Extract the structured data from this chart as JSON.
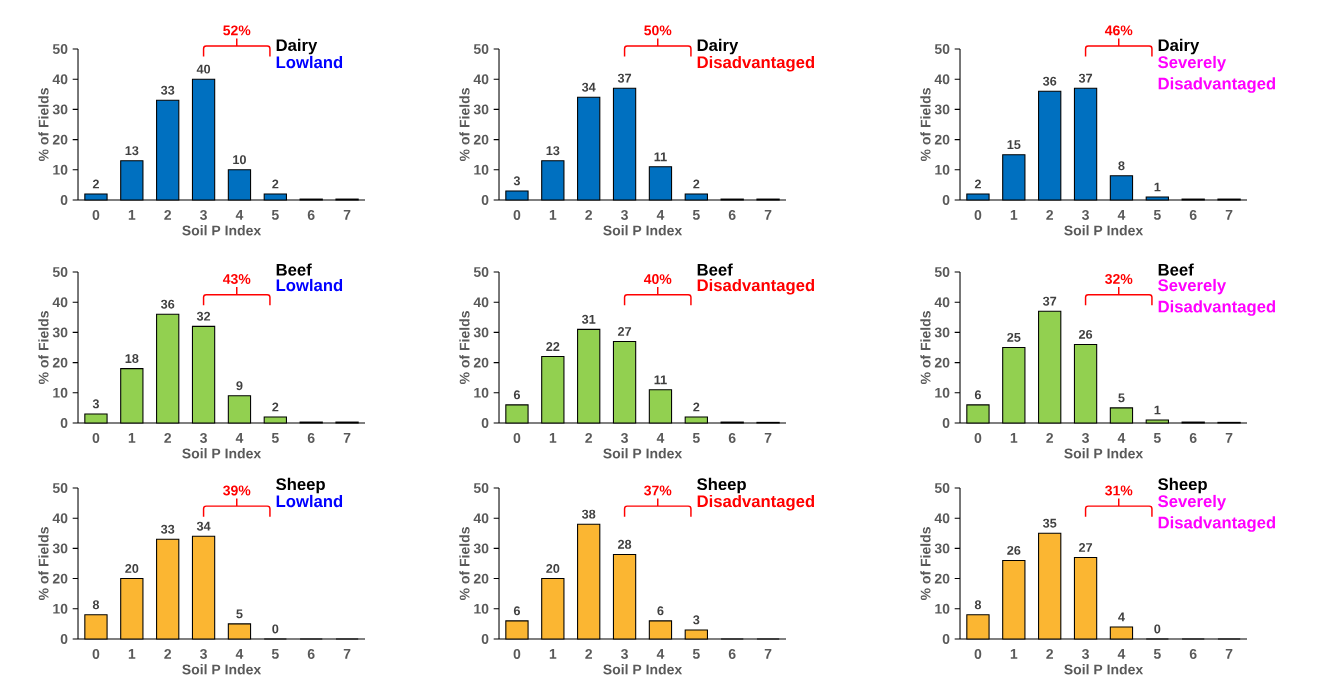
{
  "chart_data": [
    {
      "type": "bar",
      "title": "Dairy",
      "subtitle": "Lowland",
      "xlabel": "Soil P Index",
      "ylabel": "% of Fields",
      "categories": [
        "0",
        "1",
        "2",
        "3",
        "4",
        "5",
        "6",
        "7"
      ],
      "values": [
        2,
        13,
        33,
        40,
        10,
        2,
        0.3,
        0.3
      ],
      "value_labels": [
        "2",
        "13",
        "33",
        "40",
        "10",
        "2",
        null,
        null
      ],
      "color": "#0070c0",
      "ylim": [
        0,
        50
      ],
      "yticks": [
        0,
        10,
        20,
        30,
        40,
        50
      ],
      "annotations": [
        "52%"
      ]
    },
    {
      "type": "bar",
      "title": "Dairy",
      "subtitle": "Disadvantaged",
      "xlabel": "Soil P Index",
      "ylabel": "% of Fields",
      "categories": [
        "0",
        "1",
        "2",
        "3",
        "4",
        "5",
        "6",
        "7"
      ],
      "values": [
        3,
        13,
        34,
        37,
        11,
        2,
        0.3,
        0.3
      ],
      "value_labels": [
        "3",
        "13",
        "34",
        "37",
        "11",
        "2",
        null,
        null
      ],
      "color": "#0070c0",
      "ylim": [
        0,
        50
      ],
      "yticks": [
        0,
        10,
        20,
        30,
        40,
        50
      ],
      "annotations": [
        "50%"
      ]
    },
    {
      "type": "bar",
      "title": "Dairy",
      "subtitle": "Severely Disadvantaged",
      "xlabel": "Soil P Index",
      "ylabel": "% of Fields",
      "categories": [
        "0",
        "1",
        "2",
        "3",
        "4",
        "5",
        "6",
        "7"
      ],
      "values": [
        2,
        15,
        36,
        37,
        8,
        1,
        0.3,
        0.3
      ],
      "value_labels": [
        "2",
        "15",
        "36",
        "37",
        "8",
        "1",
        null,
        null
      ],
      "color": "#0070c0",
      "ylim": [
        0,
        50
      ],
      "yticks": [
        0,
        10,
        20,
        30,
        40,
        50
      ],
      "annotations": [
        "46%"
      ]
    },
    {
      "type": "bar",
      "title": "Beef",
      "subtitle": "Lowland",
      "xlabel": "Soil P Index",
      "ylabel": "% of Fields",
      "categories": [
        "0",
        "1",
        "2",
        "3",
        "4",
        "5",
        "6",
        "7"
      ],
      "values": [
        3,
        18,
        36,
        32,
        9,
        2,
        0.3,
        0.3
      ],
      "value_labels": [
        "3",
        "18",
        "36",
        "32",
        "9",
        "2",
        null,
        null
      ],
      "color": "#92d050",
      "ylim": [
        0,
        50
      ],
      "yticks": [
        0,
        10,
        20,
        30,
        40,
        50
      ],
      "annotations": [
        "43%"
      ]
    },
    {
      "type": "bar",
      "title": "Beef",
      "subtitle": "Disadvantaged",
      "xlabel": "Soil P Index",
      "ylabel": "% of Fields",
      "categories": [
        "0",
        "1",
        "2",
        "3",
        "4",
        "5",
        "6",
        "7"
      ],
      "values": [
        6,
        22,
        31,
        27,
        11,
        2,
        0.3,
        0.2
      ],
      "value_labels": [
        "6",
        "22",
        "31",
        "27",
        "11",
        "2",
        null,
        null
      ],
      "color": "#92d050",
      "ylim": [
        0,
        50
      ],
      "yticks": [
        0,
        10,
        20,
        30,
        40,
        50
      ],
      "annotations": [
        "40%"
      ]
    },
    {
      "type": "bar",
      "title": "Beef",
      "subtitle": "Severely Disadvantaged",
      "xlabel": "Soil P Index",
      "ylabel": "% of Fields",
      "categories": [
        "0",
        "1",
        "2",
        "3",
        "4",
        "5",
        "6",
        "7"
      ],
      "values": [
        6,
        25,
        37,
        26,
        5,
        1,
        0.3,
        0.2
      ],
      "value_labels": [
        "6",
        "25",
        "37",
        "26",
        "5",
        "1",
        null,
        null
      ],
      "color": "#92d050",
      "ylim": [
        0,
        50
      ],
      "yticks": [
        0,
        10,
        20,
        30,
        40,
        50
      ],
      "annotations": [
        "32%"
      ]
    },
    {
      "type": "bar",
      "title": "Sheep",
      "subtitle": "Lowland",
      "xlabel": "Soil P Index",
      "ylabel": "% of Fields",
      "categories": [
        "0",
        "1",
        "2",
        "3",
        "4",
        "5",
        "6",
        "7"
      ],
      "values": [
        8,
        20,
        33,
        34,
        5,
        0,
        0,
        0
      ],
      "value_labels": [
        "8",
        "20",
        "33",
        "34",
        "5",
        "0",
        null,
        null
      ],
      "color": "#fbb632",
      "ylim": [
        0,
        50
      ],
      "yticks": [
        0,
        10,
        20,
        30,
        40,
        50
      ],
      "annotations": [
        "39%"
      ]
    },
    {
      "type": "bar",
      "title": "Sheep",
      "subtitle": "Disadvantaged",
      "xlabel": "Soil P Index",
      "ylabel": "% of Fields",
      "categories": [
        "0",
        "1",
        "2",
        "3",
        "4",
        "5",
        "6",
        "7"
      ],
      "values": [
        6,
        20,
        38,
        28,
        6,
        3,
        0,
        0
      ],
      "value_labels": [
        "6",
        "20",
        "38",
        "28",
        "6",
        "3",
        null,
        null
      ],
      "color": "#fbb632",
      "ylim": [
        0,
        50
      ],
      "yticks": [
        0,
        10,
        20,
        30,
        40,
        50
      ],
      "annotations": [
        "37%"
      ]
    },
    {
      "type": "bar",
      "title": "Sheep",
      "subtitle": "Severely Disadvantaged",
      "xlabel": "Soil P Index",
      "ylabel": "% of Fields",
      "categories": [
        "0",
        "1",
        "2",
        "3",
        "4",
        "5",
        "6",
        "7"
      ],
      "values": [
        8,
        26,
        35,
        27,
        4,
        0,
        0,
        0
      ],
      "value_labels": [
        "8",
        "26",
        "35",
        "27",
        "4",
        "0",
        null,
        null
      ],
      "color": "#fbb632",
      "ylim": [
        0,
        50
      ],
      "yticks": [
        0,
        10,
        20,
        30,
        40,
        50
      ],
      "annotations": [
        "31%"
      ]
    }
  ]
}
